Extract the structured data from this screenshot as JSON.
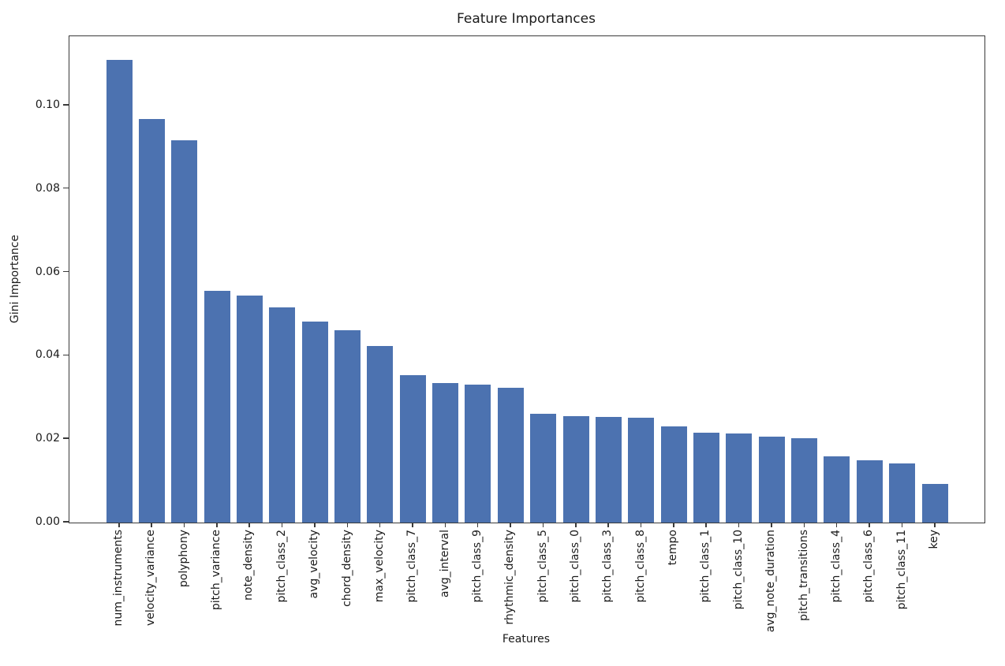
{
  "chart_data": {
    "type": "bar",
    "title": "Feature Importances",
    "xlabel": "Features",
    "ylabel": "Gini Importance",
    "categories": [
      "num_instruments",
      "velocity_variance",
      "polyphony",
      "pitch_variance",
      "note_density",
      "pitch_class_2",
      "avg_velocity",
      "chord_density",
      "max_velocity",
      "pitch_class_7",
      "avg_interval",
      "pitch_class_9",
      "rhythmic_density",
      "pitch_class_5",
      "pitch_class_0",
      "pitch_class_3",
      "pitch_class_8",
      "tempo",
      "pitch_class_1",
      "pitch_class_10",
      "avg_note_duration",
      "pitch_transitions",
      "pitch_class_4",
      "pitch_class_6",
      "pitch_class_11",
      "key"
    ],
    "values": [
      0.111,
      0.0967,
      0.0916,
      0.0555,
      0.0545,
      0.0515,
      0.0481,
      0.0461,
      0.0424,
      0.0354,
      0.0334,
      0.033,
      0.0324,
      0.0261,
      0.0256,
      0.0254,
      0.0252,
      0.0231,
      0.0216,
      0.0213,
      0.0206,
      0.0203,
      0.0159,
      0.015,
      0.0141,
      0.0092
    ],
    "ylim": [
      0,
      0.1166
    ],
    "yticks": [
      0.0,
      0.02,
      0.04,
      0.06,
      0.08,
      0.1
    ],
    "ytick_labels": [
      "0.00",
      "0.02",
      "0.04",
      "0.06",
      "0.08",
      "0.10"
    ],
    "bar_color": "#4c72b0",
    "grid": false,
    "legend": null
  }
}
